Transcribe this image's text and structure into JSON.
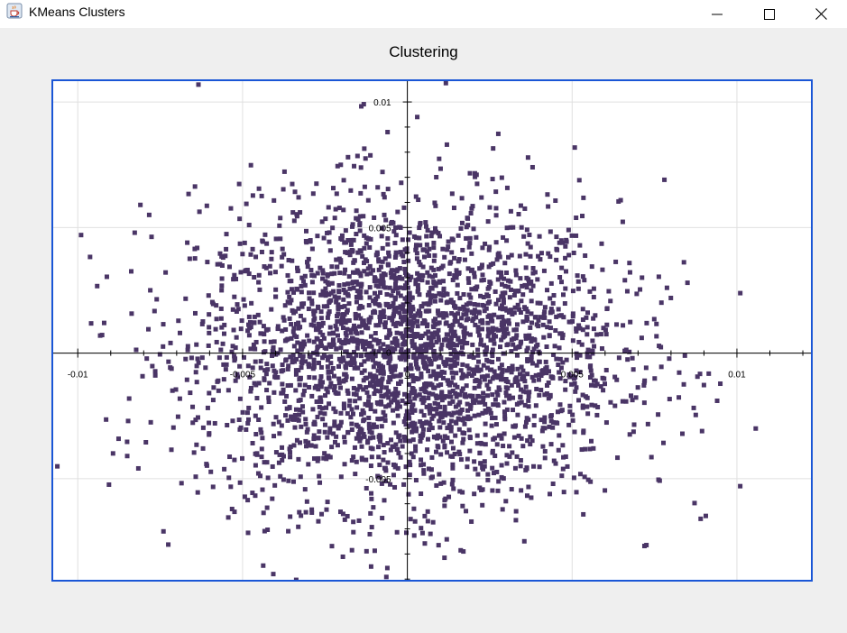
{
  "window": {
    "title": "KMeans Clusters",
    "icon": "java-cup-icon",
    "controls": [
      "minimize-icon",
      "maximize-icon",
      "close-icon"
    ]
  },
  "colors": {
    "point": "#4a3566",
    "plot_border": "#1a56d6",
    "grid": "#e0e0e0",
    "axis": "#000000",
    "background": "#efefef",
    "plot_background": "#ffffff"
  },
  "chart_data": {
    "type": "scatter",
    "title": "Clustering",
    "xlabel": "",
    "ylabel": "",
    "xlim": [
      -0.0108,
      0.0123
    ],
    "ylim": [
      -0.0091,
      0.0109
    ],
    "grid": true,
    "legend": "none",
    "marker": "square",
    "x_ticks": [
      -0.01,
      -0.005,
      0,
      0.005,
      0.01
    ],
    "x_tick_labels": [
      "-0.01",
      "-0.005",
      "0",
      "0.005",
      "0.01"
    ],
    "y_ticks": [
      0.01,
      0.005,
      0,
      -0.005
    ],
    "y_tick_labels": [
      "0.01",
      "0.005",
      "0",
      "-0.005"
    ],
    "series": [
      {
        "color": "#4a3566",
        "description_count": 3000,
        "x": [
          -0.0021,
          0.0016,
          -0.0004,
          0.0033,
          -0.0045,
          0.0008,
          -0.0012,
          0.0027,
          -0.0031,
          0.0005,
          0.0052,
          -0.0058,
          0.0019,
          -0.0007,
          0.0041,
          -0.0024,
          0.0011,
          -0.0036,
          0.0029,
          -0.0015,
          0.0063,
          -0.0069,
          0.0002,
          0.0036,
          -0.0048,
          0.0014,
          -0.0009,
          0.0057,
          -0.0027,
          0.0021,
          -0.0003,
          0.0045,
          -0.0053,
          0.0007,
          0.0025,
          -0.0018,
          0.0072,
          -0.0078,
          0.0012,
          -0.0041,
          0.0033,
          -0.0006,
          0.0049,
          -0.0033,
          0.0017,
          -0.0011,
          0.0066,
          -0.0062,
          0.0003,
          0.0038,
          -0.0092,
          0.0085,
          -0.0085,
          0.0094,
          0.0101,
          -0.0099,
          0.0078,
          -0.0074,
          0.0089,
          -0.0081
        ],
        "y": [
          0.0018,
          -0.0024,
          0.0031,
          0.0006,
          -0.0012,
          0.0042,
          -0.0035,
          -0.0009,
          0.0027,
          -0.0048,
          0.0011,
          0.0019,
          -0.0017,
          0.0055,
          -0.0031,
          -0.0041,
          0.0023,
          0.0037,
          0.0046,
          -0.0006,
          -0.0021,
          0.0008,
          -0.0062,
          0.0034,
          0.0051,
          -0.0054,
          0.0066,
          0.0015,
          -0.0067,
          0.0071,
          0.0003,
          -0.0044,
          -0.0027,
          -0.0072,
          0.0058,
          0.0078,
          -0.0011,
          0.0025,
          0.0083,
          -0.0058,
          -0.0063,
          0.0088,
          0.0039,
          0.0062,
          -0.0079,
          -0.0085,
          0.0029,
          -0.0038,
          0.0094,
          0.0074,
          0.0012,
          0.0028,
          -0.0041,
          -0.0019,
          -0.0053,
          0.0047,
          0.0069,
          -0.0071,
          -0.0066,
          0.0059
        ]
      }
    ]
  }
}
